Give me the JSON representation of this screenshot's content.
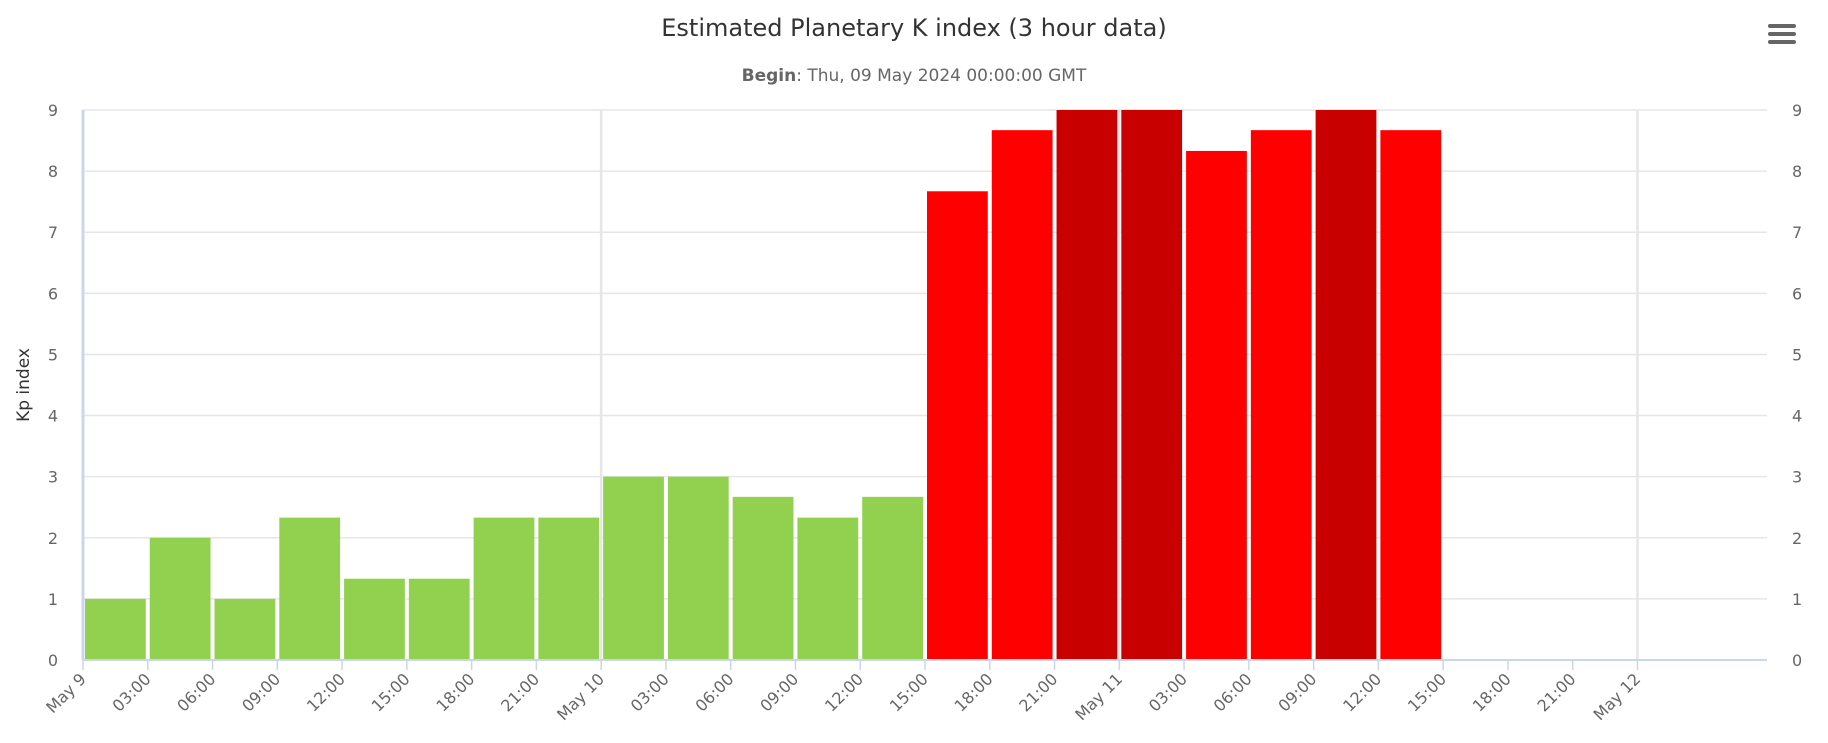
{
  "chart_data": {
    "type": "bar",
    "title": "Estimated Planetary K index (3 hour data)",
    "subtitle_label": "Begin",
    "subtitle_value": ": Thu, 09 May 2024 00:00:00 GMT",
    "ylabel": "Kp index",
    "ylim": [
      0,
      9
    ],
    "yticks": [
      0,
      1,
      2,
      3,
      4,
      5,
      6,
      7,
      8,
      9
    ],
    "grid": true,
    "x_tick_labels": [
      "May 9",
      "03:00",
      "06:00",
      "09:00",
      "12:00",
      "15:00",
      "18:00",
      "21:00",
      "May 10",
      "03:00",
      "06:00",
      "09:00",
      "12:00",
      "15:00",
      "18:00",
      "21:00",
      "May 11",
      "03:00",
      "06:00",
      "09:00",
      "12:00",
      "15:00",
      "18:00",
      "21:00",
      "May 12"
    ],
    "x_ticks_hours": [
      0,
      3,
      6,
      9,
      12,
      15,
      18,
      21,
      24,
      27,
      30,
      33,
      36,
      39,
      42,
      45,
      48,
      51,
      54,
      57,
      60,
      63,
      66,
      69,
      72
    ],
    "x_range_hours": [
      0,
      78
    ],
    "x_gridline_hours": [
      24,
      48,
      72
    ],
    "bars": [
      {
        "start": "May 9 00:00",
        "value": 1.0,
        "color": "#92d050"
      },
      {
        "start": "May 9 03:00",
        "value": 2.0,
        "color": "#92d050"
      },
      {
        "start": "May 9 06:00",
        "value": 1.0,
        "color": "#92d050"
      },
      {
        "start": "May 9 09:00",
        "value": 2.33,
        "color": "#92d050"
      },
      {
        "start": "May 9 12:00",
        "value": 1.33,
        "color": "#92d050"
      },
      {
        "start": "May 9 15:00",
        "value": 1.33,
        "color": "#92d050"
      },
      {
        "start": "May 9 18:00",
        "value": 2.33,
        "color": "#92d050"
      },
      {
        "start": "May 9 21:00",
        "value": 2.33,
        "color": "#92d050"
      },
      {
        "start": "May 10 00:00",
        "value": 3.0,
        "color": "#92d050"
      },
      {
        "start": "May 10 03:00",
        "value": 3.0,
        "color": "#92d050"
      },
      {
        "start": "May 10 06:00",
        "value": 2.67,
        "color": "#92d050"
      },
      {
        "start": "May 10 09:00",
        "value": 2.33,
        "color": "#92d050"
      },
      {
        "start": "May 10 12:00",
        "value": 2.67,
        "color": "#92d050"
      },
      {
        "start": "May 10 15:00",
        "value": 7.67,
        "color": "#ff0000"
      },
      {
        "start": "May 10 18:00",
        "value": 8.67,
        "color": "#ff0000"
      },
      {
        "start": "May 10 21:00",
        "value": 9.0,
        "color": "#c80000"
      },
      {
        "start": "May 11 00:00",
        "value": 9.0,
        "color": "#c80000"
      },
      {
        "start": "May 11 03:00",
        "value": 8.33,
        "color": "#ff0000"
      },
      {
        "start": "May 11 06:00",
        "value": 8.67,
        "color": "#ff0000"
      },
      {
        "start": "May 11 09:00",
        "value": 9.0,
        "color": "#c80000"
      },
      {
        "start": "May 11 12:00",
        "value": 8.67,
        "color": "#ff0000"
      }
    ],
    "bar_interval_hours": 3,
    "colors": {
      "grid": "#e6e6e6",
      "axis": "#ccd6eb",
      "menu": "#666666"
    }
  }
}
